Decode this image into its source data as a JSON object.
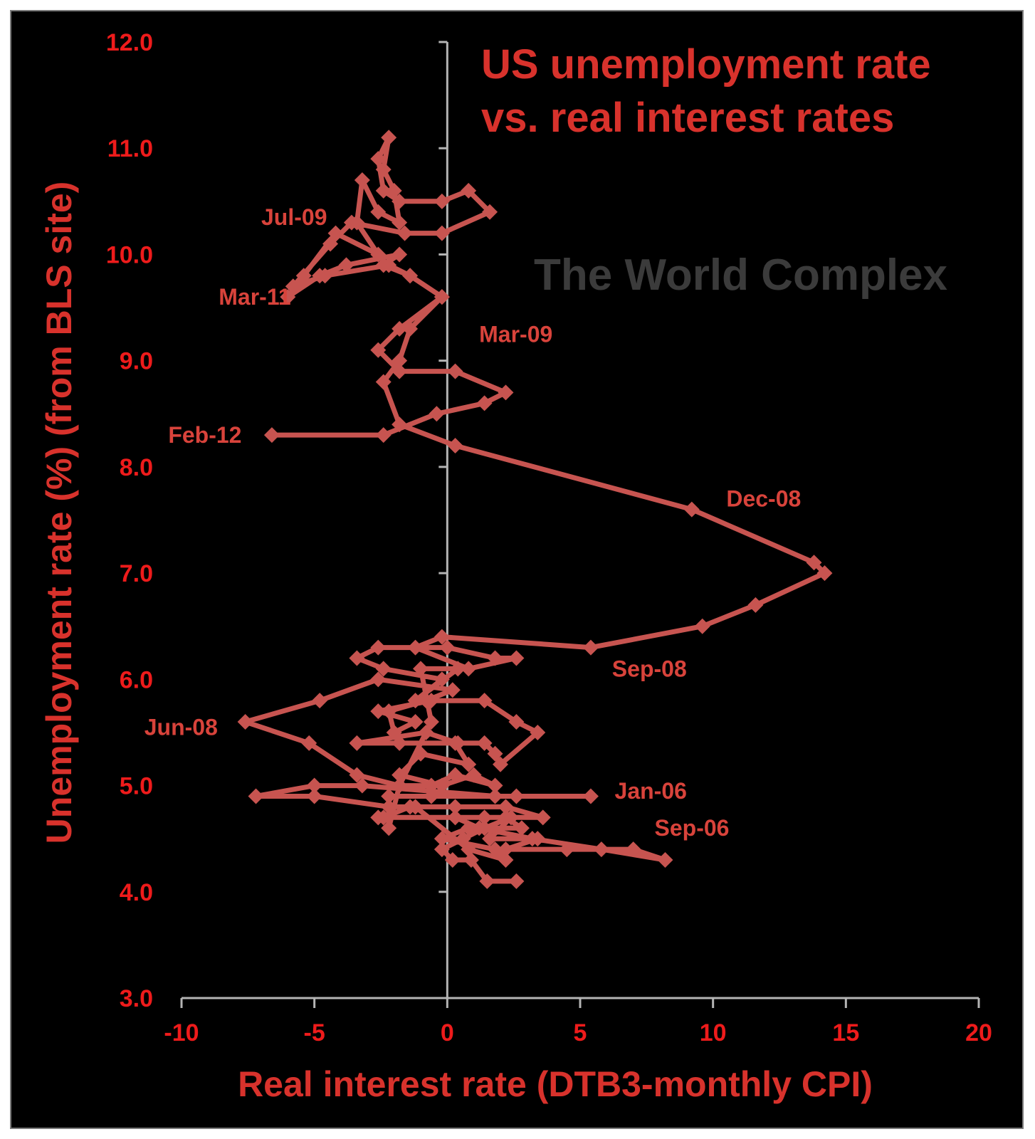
{
  "chart_data": {
    "type": "scatter",
    "title_lines": [
      "US unemployment rate",
      "vs. real interest rates"
    ],
    "watermark": "The World Complex",
    "xlabel": "Real interest rate (DTB3-monthly CPI)",
    "ylabel": "Unemployment rate (%) (from BLS site)",
    "xlim": [
      -10,
      20
    ],
    "ylim": [
      3.0,
      12.0
    ],
    "x_ticks": [
      "-10",
      "-5",
      "0",
      "5",
      "10",
      "15",
      "20"
    ],
    "y_ticks": [
      "3.0",
      "4.0",
      "5.0",
      "6.0",
      "7.0",
      "8.0",
      "9.0",
      "10.0",
      "11.0",
      "12.0"
    ],
    "grid": false,
    "legend": "none",
    "series_color": "#c75450",
    "points": [
      {
        "x": 2.6,
        "y": 4.1
      },
      {
        "x": 1.5,
        "y": 4.1
      },
      {
        "x": 0.9,
        "y": 4.3
      },
      {
        "x": 0.2,
        "y": 4.3
      },
      {
        "x": -0.2,
        "y": 4.4
      },
      {
        "x": 0.6,
        "y": 4.5
      },
      {
        "x": 1.4,
        "y": 4.6
      },
      {
        "x": 2.4,
        "y": 4.7
      },
      {
        "x": 1.6,
        "y": 4.5
      },
      {
        "x": 3.4,
        "y": 4.5
      },
      {
        "x": 2.2,
        "y": 4.4
      },
      {
        "x": 4.5,
        "y": 4.4
      },
      {
        "x": 7.0,
        "y": 4.4
      },
      {
        "x": 8.2,
        "y": 4.3
      },
      {
        "x": 5.8,
        "y": 4.4
      },
      {
        "x": 3.2,
        "y": 4.5
      },
      {
        "x": 1.2,
        "y": 4.6
      },
      {
        "x": 0.3,
        "y": 4.7
      },
      {
        "x": 1.4,
        "y": 4.7
      },
      {
        "x": 3.6,
        "y": 4.7
      },
      {
        "x": 2.2,
        "y": 4.8
      },
      {
        "x": 0.3,
        "y": 4.8
      },
      {
        "x": -1.4,
        "y": 4.8
      },
      {
        "x": -2.4,
        "y": 4.7
      },
      {
        "x": -2.6,
        "y": 4.7
      },
      {
        "x": 2.2,
        "y": 4.7
      },
      {
        "x": 2.8,
        "y": 4.6
      },
      {
        "x": 0.8,
        "y": 4.6
      },
      {
        "x": -0.2,
        "y": 4.5
      },
      {
        "x": 1.8,
        "y": 4.4
      },
      {
        "x": 2.2,
        "y": 4.3
      },
      {
        "x": 0.8,
        "y": 4.4
      },
      {
        "x": -1.2,
        "y": 4.8
      },
      {
        "x": -2.2,
        "y": 4.8
      },
      {
        "x": -5.0,
        "y": 4.9
      },
      {
        "x": -7.2,
        "y": 4.9
      },
      {
        "x": -5.0,
        "y": 5.0
      },
      {
        "x": -3.2,
        "y": 5.0
      },
      {
        "x": 1.8,
        "y": 4.9
      },
      {
        "x": 5.4,
        "y": 4.9
      },
      {
        "x": 2.6,
        "y": 4.9
      },
      {
        "x": -0.6,
        "y": 4.9
      },
      {
        "x": -2.2,
        "y": 4.9
      },
      {
        "x": -2.2,
        "y": 4.6
      },
      {
        "x": -1.8,
        "y": 5.0
      },
      {
        "x": -0.6,
        "y": 5.0
      },
      {
        "x": 0.3,
        "y": 5.1
      },
      {
        "x": 1.8,
        "y": 5.0
      },
      {
        "x": 1.0,
        "y": 5.1
      },
      {
        "x": -0.2,
        "y": 5.0
      },
      {
        "x": -1.8,
        "y": 5.1
      },
      {
        "x": -1.0,
        "y": 5.3
      },
      {
        "x": 0.8,
        "y": 5.2
      },
      {
        "x": 0.3,
        "y": 5.4
      },
      {
        "x": -1.8,
        "y": 5.4
      },
      {
        "x": -3.4,
        "y": 5.4
      },
      {
        "x": -0.8,
        "y": 5.5
      },
      {
        "x": 0.4,
        "y": 5.4
      },
      {
        "x": 1.4,
        "y": 5.4
      },
      {
        "x": 1.8,
        "y": 5.3
      },
      {
        "x": 2.0,
        "y": 5.2
      },
      {
        "x": 3.4,
        "y": 5.5
      },
      {
        "x": 2.6,
        "y": 5.6
      },
      {
        "x": 1.4,
        "y": 5.8
      },
      {
        "x": -0.6,
        "y": 5.8
      },
      {
        "x": -2.6,
        "y": 5.7
      },
      {
        "x": -1.2,
        "y": 5.6
      },
      {
        "x": -2.0,
        "y": 5.5
      },
      {
        "x": -2.2,
        "y": 5.7
      },
      {
        "x": -0.8,
        "y": 5.8
      },
      {
        "x": 0.2,
        "y": 5.9
      },
      {
        "x": -2.6,
        "y": 6.0
      },
      {
        "x": -4.8,
        "y": 5.8
      },
      {
        "x": -7.6,
        "y": 5.6
      },
      {
        "x": -5.2,
        "y": 5.4
      },
      {
        "x": -3.4,
        "y": 5.1
      },
      {
        "x": -1.8,
        "y": 5.0
      },
      {
        "x": -0.6,
        "y": 5.6
      },
      {
        "x": -1.0,
        "y": 6.1
      },
      {
        "x": 0.4,
        "y": 6.1
      },
      {
        "x": -1.2,
        "y": 5.8
      },
      {
        "x": -0.2,
        "y": 6.0
      },
      {
        "x": -2.4,
        "y": 6.1
      },
      {
        "x": -3.4,
        "y": 6.2
      },
      {
        "x": -2.6,
        "y": 6.3
      },
      {
        "x": 0.0,
        "y": 6.3
      },
      {
        "x": 1.8,
        "y": 6.2
      },
      {
        "x": 2.6,
        "y": 6.2
      },
      {
        "x": 0.8,
        "y": 6.1
      },
      {
        "x": -1.2,
        "y": 6.3
      },
      {
        "x": -0.2,
        "y": 6.4
      },
      {
        "x": 5.4,
        "y": 6.3
      },
      {
        "x": 9.6,
        "y": 6.5
      },
      {
        "x": 11.6,
        "y": 6.7
      },
      {
        "x": 14.2,
        "y": 7.0
      },
      {
        "x": 13.8,
        "y": 7.1
      },
      {
        "x": 9.2,
        "y": 7.6
      },
      {
        "x": 0.3,
        "y": 8.2
      },
      {
        "x": -1.8,
        "y": 8.4
      },
      {
        "x": -2.4,
        "y": 8.8
      },
      {
        "x": -1.8,
        "y": 9.0
      },
      {
        "x": -1.4,
        "y": 9.3
      },
      {
        "x": -0.2,
        "y": 9.6
      },
      {
        "x": -1.4,
        "y": 9.8
      },
      {
        "x": -2.2,
        "y": 9.9
      },
      {
        "x": -4.6,
        "y": 9.8
      },
      {
        "x": -5.8,
        "y": 9.7
      },
      {
        "x": -4.4,
        "y": 10.1
      },
      {
        "x": -3.6,
        "y": 10.3
      },
      {
        "x": -1.6,
        "y": 10.2
      },
      {
        "x": -0.2,
        "y": 10.2
      },
      {
        "x": 1.6,
        "y": 10.4
      },
      {
        "x": 0.8,
        "y": 10.6
      },
      {
        "x": -0.2,
        "y": 10.5
      },
      {
        "x": -1.8,
        "y": 10.5
      },
      {
        "x": -2.4,
        "y": 10.6
      },
      {
        "x": -2.6,
        "y": 10.9
      },
      {
        "x": -2.2,
        "y": 11.1
      },
      {
        "x": -2.4,
        "y": 10.8
      },
      {
        "x": -2.0,
        "y": 10.6
      },
      {
        "x": -1.8,
        "y": 10.3
      },
      {
        "x": -2.6,
        "y": 10.4
      },
      {
        "x": -3.2,
        "y": 10.7
      },
      {
        "x": -3.4,
        "y": 10.3
      },
      {
        "x": -2.6,
        "y": 10.0
      },
      {
        "x": -4.2,
        "y": 10.2
      },
      {
        "x": -5.4,
        "y": 9.8
      },
      {
        "x": -6.0,
        "y": 9.6
      },
      {
        "x": -4.8,
        "y": 9.8
      },
      {
        "x": -3.8,
        "y": 9.9
      },
      {
        "x": -1.8,
        "y": 10.0
      },
      {
        "x": -2.4,
        "y": 9.9
      },
      {
        "x": -1.4,
        "y": 9.8
      },
      {
        "x": -0.2,
        "y": 9.6
      },
      {
        "x": -1.8,
        "y": 9.3
      },
      {
        "x": -2.6,
        "y": 9.1
      },
      {
        "x": -1.8,
        "y": 8.9
      },
      {
        "x": 0.3,
        "y": 8.9
      },
      {
        "x": 2.2,
        "y": 8.7
      },
      {
        "x": 1.4,
        "y": 8.6
      },
      {
        "x": -0.4,
        "y": 8.5
      },
      {
        "x": -2.4,
        "y": 8.3
      },
      {
        "x": -6.6,
        "y": 8.3
      }
    ],
    "annotations": [
      {
        "label": "Jul-09",
        "x": -7.0,
        "y": 10.35
      },
      {
        "label": "Mar-11",
        "x": -8.6,
        "y": 9.6
      },
      {
        "label": "Mar-09",
        "x": 1.2,
        "y": 9.25
      },
      {
        "label": "Feb-12",
        "x": -10.5,
        "y": 8.3
      },
      {
        "label": "Dec-08",
        "x": 10.5,
        "y": 7.7
      },
      {
        "label": "Sep-08",
        "x": 6.2,
        "y": 6.1
      },
      {
        "label": "Jun-08",
        "x": -11.4,
        "y": 5.55
      },
      {
        "label": "Jan-06",
        "x": 6.3,
        "y": 4.95
      },
      {
        "label": "Sep-06",
        "x": 7.8,
        "y": 4.6
      }
    ]
  }
}
